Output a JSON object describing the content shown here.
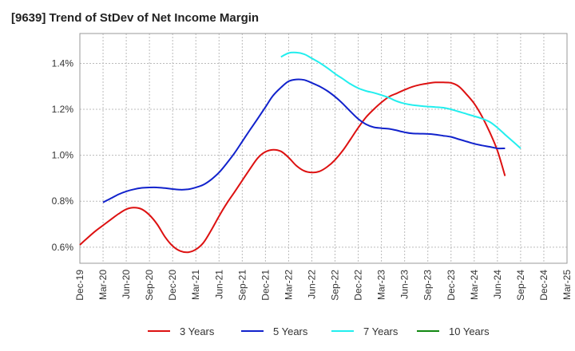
{
  "title": "[9639]  Trend of StDev of Net Income Margin",
  "chart_data": {
    "type": "line",
    "x": [
      "Dec-19",
      "Mar-20",
      "Jun-20",
      "Sep-20",
      "Dec-20",
      "Mar-21",
      "Jun-21",
      "Sep-21",
      "Dec-21",
      "Mar-22",
      "Jun-22",
      "Sep-22",
      "Dec-22",
      "Mar-23",
      "Jun-23",
      "Sep-23",
      "Dec-23",
      "Mar-24",
      "Jun-24",
      "Sep-24",
      "Dec-24",
      "Mar-25"
    ],
    "ylim": [
      0.53,
      1.53
    ],
    "yticks": [
      0.6,
      0.8,
      1.0,
      1.2,
      1.4
    ],
    "ytick_labels": [
      "0.6%",
      "0.8%",
      "1.0%",
      "1.2%",
      "1.4%"
    ],
    "grid": true,
    "legend_position": "bottom",
    "series": [
      {
        "name": "3 Years",
        "color": "#dd1111",
        "points": [
          [
            0,
            0.61
          ],
          [
            0.33,
            0.64
          ],
          [
            0.67,
            0.67
          ],
          [
            1,
            0.695
          ],
          [
            1.33,
            0.72
          ],
          [
            1.67,
            0.745
          ],
          [
            2,
            0.765
          ],
          [
            2.33,
            0.772
          ],
          [
            2.67,
            0.765
          ],
          [
            3,
            0.74
          ],
          [
            3.33,
            0.7
          ],
          [
            3.67,
            0.645
          ],
          [
            4,
            0.605
          ],
          [
            4.33,
            0.583
          ],
          [
            4.67,
            0.578
          ],
          [
            5,
            0.59
          ],
          [
            5.33,
            0.62
          ],
          [
            5.67,
            0.675
          ],
          [
            6,
            0.735
          ],
          [
            6.33,
            0.79
          ],
          [
            6.67,
            0.84
          ],
          [
            7,
            0.89
          ],
          [
            7.33,
            0.94
          ],
          [
            7.67,
            0.988
          ],
          [
            8,
            1.015
          ],
          [
            8.33,
            1.024
          ],
          [
            8.67,
            1.017
          ],
          [
            9,
            0.99
          ],
          [
            9.33,
            0.955
          ],
          [
            9.67,
            0.932
          ],
          [
            10,
            0.925
          ],
          [
            10.33,
            0.93
          ],
          [
            10.67,
            0.95
          ],
          [
            11,
            0.98
          ],
          [
            11.33,
            1.02
          ],
          [
            11.67,
            1.07
          ],
          [
            12,
            1.12
          ],
          [
            12.33,
            1.165
          ],
          [
            12.67,
            1.2
          ],
          [
            13,
            1.23
          ],
          [
            13.33,
            1.255
          ],
          [
            13.67,
            1.27
          ],
          [
            14,
            1.285
          ],
          [
            14.33,
            1.298
          ],
          [
            14.67,
            1.307
          ],
          [
            15,
            1.313
          ],
          [
            15.33,
            1.317
          ],
          [
            15.67,
            1.317
          ],
          [
            16,
            1.315
          ],
          [
            16.33,
            1.3
          ],
          [
            16.67,
            1.265
          ],
          [
            17,
            1.225
          ],
          [
            17.33,
            1.17
          ],
          [
            17.67,
            1.1
          ],
          [
            18,
            1.02
          ],
          [
            18.33,
            0.91
          ]
        ]
      },
      {
        "name": "5 Years",
        "color": "#1122cc",
        "points": [
          [
            1,
            0.795
          ],
          [
            1.33,
            0.812
          ],
          [
            1.67,
            0.83
          ],
          [
            2,
            0.843
          ],
          [
            2.33,
            0.852
          ],
          [
            2.67,
            0.858
          ],
          [
            3,
            0.86
          ],
          [
            3.33,
            0.86
          ],
          [
            3.67,
            0.857
          ],
          [
            4,
            0.853
          ],
          [
            4.33,
            0.85
          ],
          [
            4.67,
            0.852
          ],
          [
            5,
            0.86
          ],
          [
            5.33,
            0.872
          ],
          [
            5.67,
            0.895
          ],
          [
            6,
            0.925
          ],
          [
            6.33,
            0.965
          ],
          [
            6.67,
            1.01
          ],
          [
            7,
            1.06
          ],
          [
            7.33,
            1.11
          ],
          [
            7.67,
            1.16
          ],
          [
            8,
            1.21
          ],
          [
            8.33,
            1.26
          ],
          [
            8.67,
            1.295
          ],
          [
            9,
            1.322
          ],
          [
            9.33,
            1.33
          ],
          [
            9.67,
            1.328
          ],
          [
            10,
            1.315
          ],
          [
            10.33,
            1.3
          ],
          [
            10.67,
            1.28
          ],
          [
            11,
            1.255
          ],
          [
            11.33,
            1.225
          ],
          [
            11.67,
            1.19
          ],
          [
            12,
            1.158
          ],
          [
            12.33,
            1.135
          ],
          [
            12.67,
            1.122
          ],
          [
            13,
            1.118
          ],
          [
            13.33,
            1.115
          ],
          [
            13.67,
            1.108
          ],
          [
            14,
            1.1
          ],
          [
            14.33,
            1.095
          ],
          [
            14.67,
            1.094
          ],
          [
            15,
            1.093
          ],
          [
            15.33,
            1.09
          ],
          [
            15.67,
            1.085
          ],
          [
            16,
            1.08
          ],
          [
            16.33,
            1.07
          ],
          [
            16.67,
            1.06
          ],
          [
            17,
            1.05
          ],
          [
            17.33,
            1.043
          ],
          [
            17.67,
            1.037
          ],
          [
            18,
            1.03
          ],
          [
            18.33,
            1.03
          ]
        ]
      },
      {
        "name": "7 Years",
        "color": "#22eeee",
        "points": [
          [
            8.67,
            1.428
          ],
          [
            9,
            1.445
          ],
          [
            9.33,
            1.447
          ],
          [
            9.67,
            1.44
          ],
          [
            10,
            1.422
          ],
          [
            10.33,
            1.403
          ],
          [
            10.67,
            1.38
          ],
          [
            11,
            1.355
          ],
          [
            11.33,
            1.333
          ],
          [
            11.67,
            1.31
          ],
          [
            12,
            1.292
          ],
          [
            12.33,
            1.28
          ],
          [
            12.67,
            1.272
          ],
          [
            13,
            1.262
          ],
          [
            13.33,
            1.25
          ],
          [
            13.67,
            1.235
          ],
          [
            14,
            1.225
          ],
          [
            14.33,
            1.219
          ],
          [
            14.67,
            1.215
          ],
          [
            15,
            1.212
          ],
          [
            15.33,
            1.21
          ],
          [
            15.67,
            1.207
          ],
          [
            16,
            1.2
          ],
          [
            16.33,
            1.19
          ],
          [
            16.67,
            1.18
          ],
          [
            17,
            1.17
          ],
          [
            17.33,
            1.16
          ],
          [
            17.67,
            1.145
          ],
          [
            18,
            1.12
          ],
          [
            18.33,
            1.09
          ],
          [
            18.67,
            1.06
          ],
          [
            19,
            1.03
          ]
        ]
      },
      {
        "name": "10 Years",
        "color": "#118811",
        "points": []
      }
    ]
  }
}
